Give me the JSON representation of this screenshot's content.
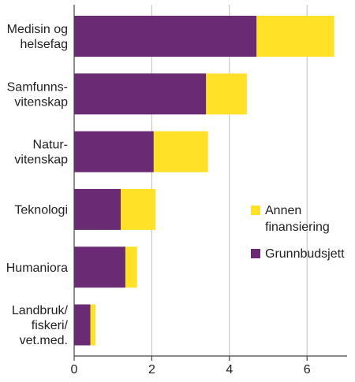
{
  "chart_data": {
    "type": "bar",
    "orientation": "horizontal",
    "stacked": true,
    "categories": [
      [
        "Medisin og",
        "helsefag"
      ],
      [
        "Samfunns-",
        "vitenskap"
      ],
      [
        "Natur-",
        "vitenskap"
      ],
      [
        "Teknologi"
      ],
      [
        "Humaniora"
      ],
      [
        "Landbruk/",
        "fiskeri/",
        "vet.med."
      ]
    ],
    "series": [
      {
        "name": "Grunnbudsjett",
        "color": "#6b2a74",
        "values": [
          4.7,
          3.4,
          2.05,
          1.2,
          1.32,
          0.42
        ]
      },
      {
        "name": "Annen finansiering",
        "color": "#ffe227",
        "values": [
          2.0,
          1.05,
          1.4,
          0.9,
          0.3,
          0.13
        ]
      }
    ],
    "legend": {
      "placement": "right",
      "items": [
        {
          "series": 1,
          "lines": [
            "Annen",
            "finansiering"
          ]
        },
        {
          "series": 0,
          "lines": [
            "Grunnbudsjett"
          ]
        }
      ]
    },
    "xlim": [
      0,
      7
    ],
    "xticks": [
      0,
      2,
      4,
      6
    ],
    "grid": "vertical",
    "title": "",
    "xlabel": "",
    "ylabel": ""
  }
}
